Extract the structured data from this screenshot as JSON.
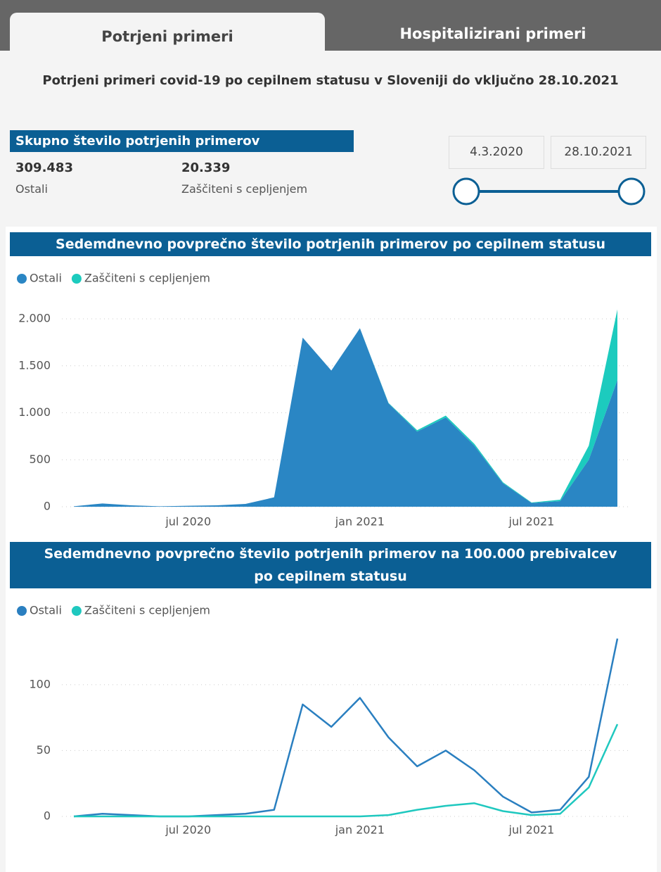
{
  "tabs": [
    "Potrjeni primeri",
    "Hospitalizirani primeri"
  ],
  "subtitle": "Potrjeni primeri covid-19 po cepilnem statusu v Sloveniji do vključno 28.10.2021",
  "summary": {
    "title": "Skupno število potrjenih primerov",
    "items": [
      {
        "value": "309.483",
        "label": "Ostali"
      },
      {
        "value": "20.339",
        "label": "Zaščiteni s cepljenjem"
      }
    ]
  },
  "date_range": [
    "4.3.2020",
    "28.10.2021"
  ],
  "chart_data": [
    {
      "type": "stacked_area",
      "title": "Sedemdnevno povprečno število potrjenih primerov po cepilnem statusu",
      "x": [
        "2020-03",
        "2020-04",
        "2020-05",
        "2020-06",
        "2020-07",
        "2020-08",
        "2020-09",
        "2020-10",
        "2020-11",
        "2020-12",
        "2021-01",
        "2021-02",
        "2021-03",
        "2021-04",
        "2021-05",
        "2021-06",
        "2021-07",
        "2021-08",
        "2021-09",
        "2021-10"
      ],
      "series": [
        {
          "name": "Ostali",
          "color": "#2a86c4",
          "values": [
            5,
            35,
            15,
            5,
            10,
            15,
            30,
            100,
            1800,
            1450,
            1900,
            1100,
            800,
            950,
            650,
            250,
            40,
            60,
            500,
            1350
          ]
        },
        {
          "name": "Zaščiteni s cepljenjem",
          "color": "#1ccbbe",
          "values": [
            0,
            0,
            0,
            0,
            0,
            0,
            0,
            0,
            0,
            0,
            0,
            5,
            15,
            20,
            20,
            10,
            5,
            15,
            150,
            750
          ]
        }
      ],
      "xlim": [
        "2020-03",
        "2021-10"
      ],
      "xticks": [
        {
          "value": "2020-07",
          "label": "jul 2020"
        },
        {
          "value": "2021-01",
          "label": "jan 2021"
        },
        {
          "value": "2021-07",
          "label": "jul 2021"
        }
      ],
      "ylim": [
        0,
        2150
      ],
      "yticks": [
        0,
        500,
        {
          "value": 1000,
          "label": "1.000"
        },
        {
          "value": 1500,
          "label": "1.500"
        },
        {
          "value": 2000,
          "label": "2.000"
        }
      ],
      "grid": true
    },
    {
      "type": "line",
      "title": "Sedemdnevno povprečno število potrjenih primerov na 100.000 prebivalcev po cepilnem statusu",
      "x": [
        "2020-03",
        "2020-04",
        "2020-05",
        "2020-06",
        "2020-07",
        "2020-08",
        "2020-09",
        "2020-10",
        "2020-11",
        "2020-12",
        "2021-01",
        "2021-02",
        "2021-03",
        "2021-04",
        "2021-05",
        "2021-06",
        "2021-07",
        "2021-08",
        "2021-09",
        "2021-10"
      ],
      "series": [
        {
          "name": "Ostali",
          "color": "#2a7fc0",
          "values": [
            0,
            2,
            1,
            0,
            0,
            1,
            2,
            5,
            85,
            68,
            90,
            60,
            38,
            50,
            35,
            15,
            3,
            5,
            30,
            135
          ]
        },
        {
          "name": "Zaščiteni s cepljenjem",
          "color": "#1fc8bf",
          "values": [
            0,
            0,
            0,
            0,
            0,
            0,
            0,
            0,
            0,
            0,
            0,
            1,
            5,
            8,
            10,
            4,
            1,
            2,
            22,
            70
          ]
        }
      ],
      "xlim": [
        "2020-03",
        "2021-10"
      ],
      "xticks": [
        {
          "value": "2020-07",
          "label": "jul 2020"
        },
        {
          "value": "2021-01",
          "label": "jan 2021"
        },
        {
          "value": "2021-07",
          "label": "jul 2021"
        }
      ],
      "ylim": [
        0,
        140
      ],
      "yticks": [
        0,
        50,
        100
      ],
      "grid": true
    }
  ]
}
